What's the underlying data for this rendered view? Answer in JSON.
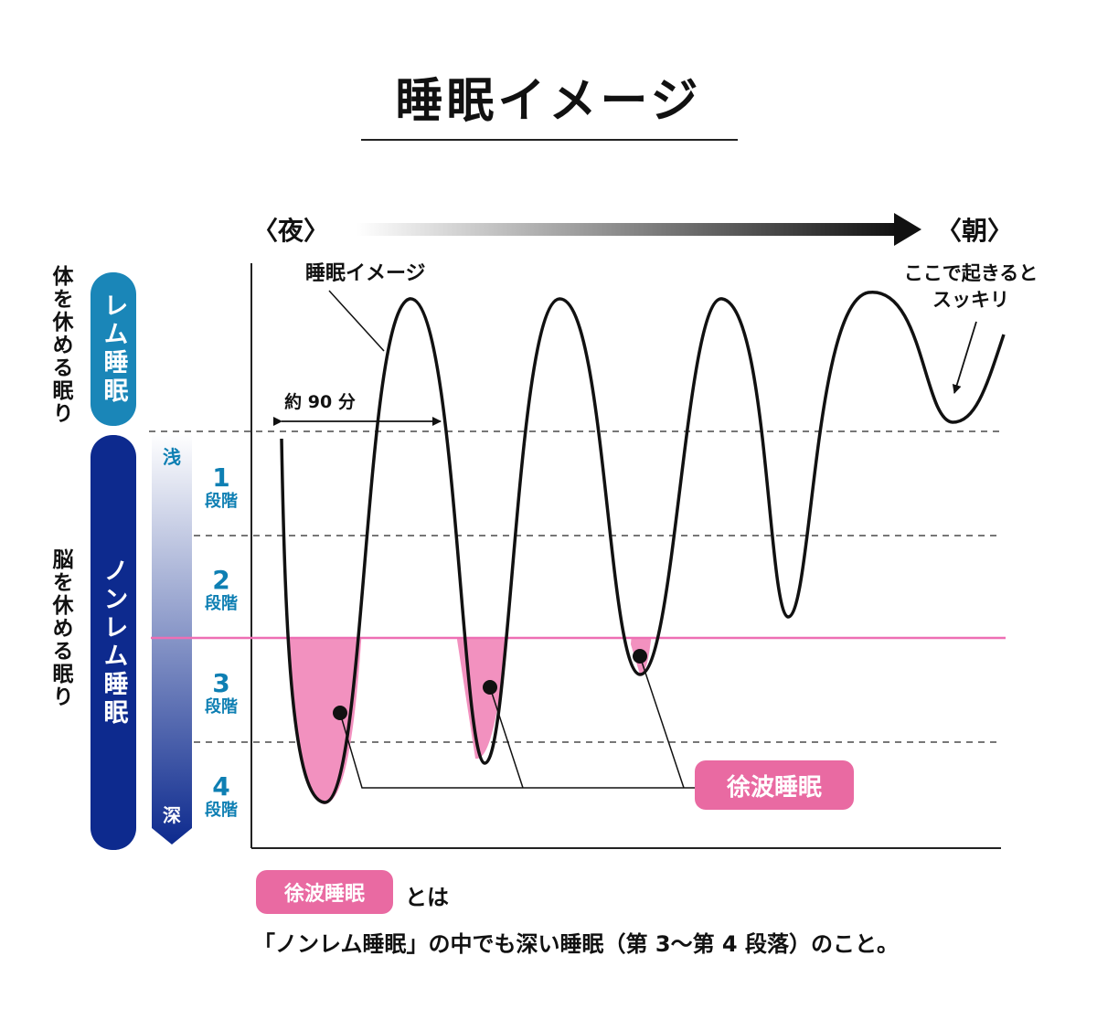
{
  "title": "睡眠イメージ",
  "time_axis": {
    "start": "〈夜〉",
    "end": "〈朝〉"
  },
  "left_labels": {
    "rem": "体を休める眠り",
    "nonrem": "脳を休める眠り"
  },
  "pills": {
    "rem": "レム睡眠",
    "nonrem": "ノンレム睡眠"
  },
  "depth": {
    "shallow": "浅",
    "deep": "深"
  },
  "stages": [
    {
      "num": "1",
      "label": "段階"
    },
    {
      "num": "2",
      "label": "段階"
    },
    {
      "num": "3",
      "label": "段階"
    },
    {
      "num": "4",
      "label": "段階"
    }
  ],
  "annotations": {
    "curve_label": "睡眠イメージ",
    "cycle": "約 90 分",
    "wake_line1": "ここで起きると",
    "wake_line2": "スッキリ",
    "slow_wave": "徐波睡眠"
  },
  "bottom": {
    "badge": "徐波睡眠",
    "suffix": "とは",
    "description": "「ノンレム睡眠」の中でも深い睡眠（第 3〜第 4 段落）のこと。"
  },
  "colors": {
    "rem_pill": "#1a86b8",
    "nonrem_pill": "#0d2a8e",
    "slow_wave_fill": "#f291bf",
    "slow_wave_line": "#ee6fb4",
    "badge": "#e96aa2",
    "stage_text": "#0e7fb3"
  }
}
